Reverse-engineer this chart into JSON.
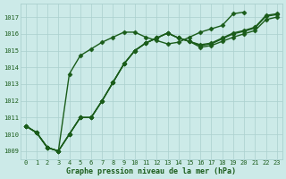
{
  "title": "Graphe pression niveau de la mer (hPa)",
  "xlabel_labels": [
    "0",
    "1",
    "2",
    "3",
    "4",
    "5",
    "6",
    "7",
    "8",
    "9",
    "10",
    "11",
    "12",
    "13",
    "14",
    "15",
    "16",
    "17",
    "18",
    "19",
    "20",
    "21",
    "22",
    "23"
  ],
  "ylim": [
    1008.5,
    1017.8
  ],
  "yticks": [
    1009,
    1010,
    1011,
    1012,
    1013,
    1014,
    1015,
    1016,
    1017
  ],
  "background_color": "#cceae8",
  "grid_color": "#aad0ce",
  "line_color": "#1a5c1a",
  "series": [
    [
      1010.5,
      1010.1,
      1009.2,
      1009.0,
      1010.0,
      1011.0,
      1011.0,
      1012.0,
      1013.1,
      1014.2,
      1015.0,
      1015.45,
      1015.75,
      1016.05,
      1015.75,
      1015.55,
      1015.2,
      1015.3,
      1015.55,
      1015.8,
      1016.0,
      1016.2,
      1016.85,
      1017.0
    ],
    [
      1010.5,
      1010.1,
      1009.2,
      1009.0,
      1010.0,
      1011.0,
      1011.0,
      1012.0,
      1013.1,
      1014.2,
      1015.0,
      1015.45,
      1015.75,
      1016.05,
      1015.75,
      1015.55,
      1015.3,
      1015.4,
      1015.7,
      1016.0,
      1016.15,
      1016.35,
      1017.05,
      1017.15
    ],
    [
      1010.5,
      1010.1,
      1009.2,
      1009.0,
      1010.0,
      1011.0,
      1011.0,
      1012.0,
      1013.1,
      1014.2,
      1015.0,
      1015.45,
      1015.75,
      1016.05,
      1015.75,
      1015.55,
      1015.35,
      1015.45,
      1015.75,
      1016.05,
      1016.2,
      1016.4,
      1017.1,
      1017.2
    ],
    [
      1010.5,
      1010.1,
      1009.2,
      1009.0,
      1013.6,
      1014.7,
      1015.1,
      1015.5,
      1015.8,
      1016.1,
      1016.1,
      1015.8,
      1015.6,
      1015.4,
      1015.5,
      1015.8,
      1016.1,
      1016.3,
      1016.5,
      1017.2,
      1017.3,
      null,
      null,
      null
    ]
  ],
  "marker": "D",
  "markersize": 2.5,
  "linewidth": 1.0
}
